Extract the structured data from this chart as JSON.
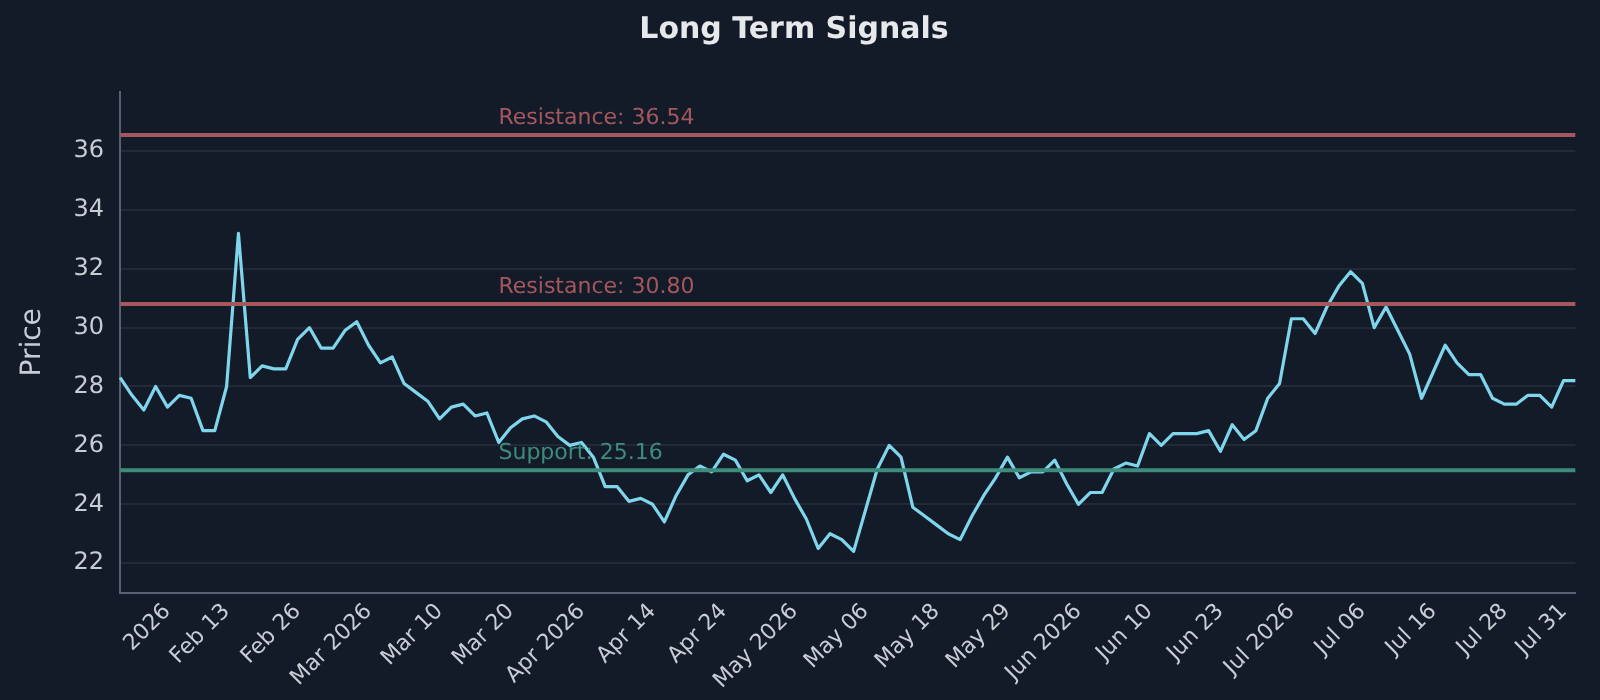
{
  "chart_data": {
    "type": "line",
    "title": "Long Term Signals",
    "ylabel": "Price",
    "categories": [
      null,
      null,
      null,
      null,
      "2026",
      null,
      null,
      null,
      null,
      "Feb 13",
      null,
      null,
      null,
      null,
      null,
      "Feb 26",
      null,
      null,
      null,
      null,
      null,
      "Mar 2026",
      null,
      null,
      null,
      null,
      null,
      "Mar 10",
      null,
      null,
      null,
      null,
      null,
      "Mar 20",
      null,
      null,
      null,
      null,
      null,
      "Apr 2026",
      null,
      null,
      null,
      null,
      null,
      "Apr 14",
      null,
      null,
      null,
      null,
      null,
      "Apr 24",
      null,
      null,
      null,
      null,
      null,
      "May 2026",
      null,
      null,
      null,
      null,
      null,
      "May 06",
      null,
      null,
      null,
      null,
      null,
      "May 18",
      null,
      null,
      null,
      null,
      null,
      "May 29",
      null,
      null,
      null,
      null,
      null,
      "Jun 2026",
      null,
      null,
      null,
      null,
      null,
      "Jun 10",
      null,
      null,
      null,
      null,
      null,
      "Jun 23",
      null,
      null,
      null,
      null,
      null,
      "Jul 2026",
      null,
      null,
      null,
      null,
      null,
      "Jul 06",
      null,
      null,
      null,
      null,
      null,
      "Jul 16",
      null,
      null,
      null,
      null,
      null,
      "Jul 28",
      null,
      null,
      null,
      null,
      "Jul 31",
      null
    ],
    "series": [
      {
        "color": "#7fd6ec",
        "values": [
          28.3,
          27.7,
          27.2,
          28.0,
          27.3,
          27.7,
          27.6,
          26.5,
          26.5,
          28.0,
          33.2,
          28.3,
          28.7,
          28.6,
          28.6,
          29.6,
          30.0,
          29.3,
          29.3,
          29.9,
          30.2,
          29.4,
          28.8,
          29.0,
          28.1,
          27.8,
          27.5,
          26.9,
          27.3,
          27.4,
          27.0,
          27.1,
          26.1,
          26.6,
          26.9,
          27.0,
          26.8,
          26.3,
          26.0,
          26.1,
          25.6,
          24.6,
          24.6,
          24.1,
          24.2,
          24.0,
          23.4,
          24.3,
          25.0,
          25.3,
          25.1,
          25.7,
          25.5,
          24.8,
          25.0,
          24.4,
          25.0,
          24.2,
          23.5,
          22.5,
          23.0,
          22.8,
          22.4,
          23.8,
          25.2,
          26.0,
          25.6,
          23.9,
          23.6,
          23.3,
          23.0,
          22.8,
          23.6,
          24.3,
          24.9,
          25.6,
          24.9,
          25.1,
          25.1,
          25.5,
          24.7,
          24.0,
          24.4,
          24.4,
          25.2,
          25.4,
          25.3,
          26.4,
          26.0,
          26.4,
          26.4,
          26.4,
          26.5,
          25.8,
          26.7,
          26.2,
          26.5,
          27.6,
          28.1,
          30.3,
          30.3,
          29.8,
          30.7,
          31.4,
          31.9,
          31.5,
          30.0,
          30.7,
          29.9,
          29.1,
          27.6,
          28.5,
          29.4,
          28.8,
          28.4,
          28.4,
          27.6,
          27.4,
          27.4,
          27.7,
          27.7,
          27.3,
          28.2,
          28.2
        ]
      }
    ],
    "ylim": [
      21,
      38
    ],
    "yticks": [
      22,
      24,
      26,
      28,
      30,
      32,
      34,
      36
    ],
    "grid": "y",
    "legend": false,
    "ref_lines": [
      {
        "axis": "y",
        "value": 36.54,
        "label": "Resistance: 36.54",
        "color": "#a4585e"
      },
      {
        "axis": "y",
        "value": 30.8,
        "label": "Resistance: 30.80",
        "color": "#a4585e"
      },
      {
        "axis": "y",
        "value": 25.16,
        "label": "Support: 25.16",
        "color": "#3e8c7c"
      }
    ]
  }
}
